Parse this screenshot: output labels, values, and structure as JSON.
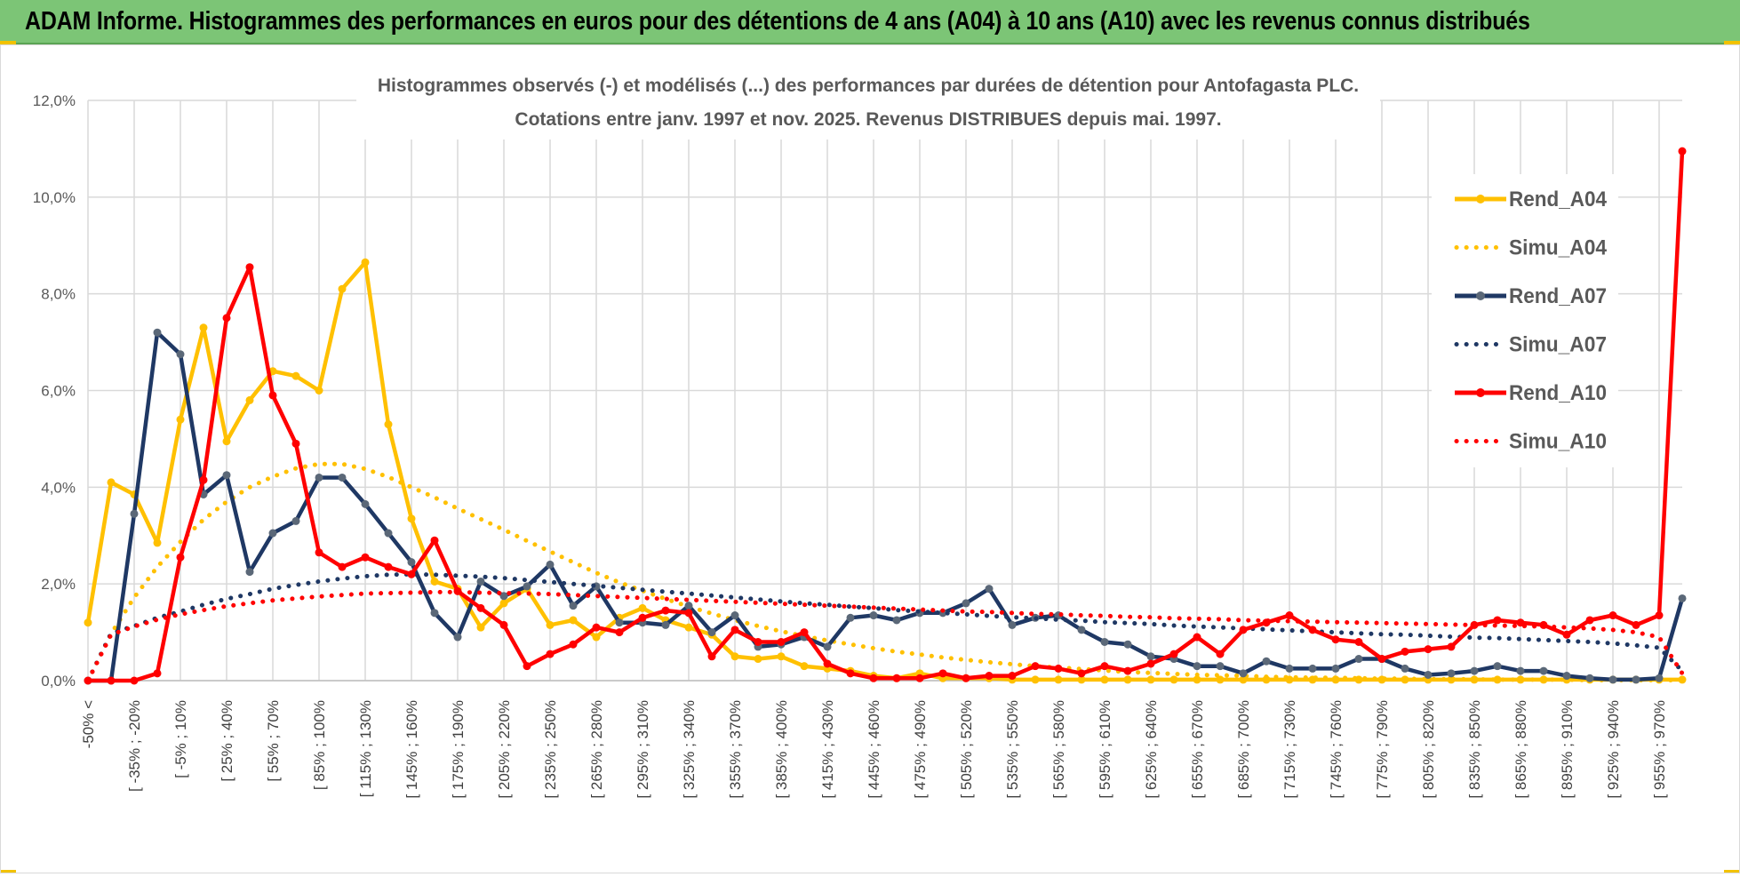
{
  "banner": {
    "title": "ADAM Informe. Histogrammes des performances en euros pour des détentions de 4 ans (A04) à 10 ans (A10) avec les revenus connus distribués"
  },
  "colors": {
    "banner_bg": "#7cc576",
    "A04": "#FFC000",
    "A07": "#1F3864",
    "A10": "#FF0000",
    "grid": "#d9d9d9"
  },
  "chart_data": {
    "type": "line",
    "title_line1": "Histogrammes observés (-) et modélisés (...)  des performances par durées de détention pour Antofagasta PLC.",
    "title_line2": "Cotations entre janv. 1997 et nov. 2025. Revenus DISTRIBUES depuis mai. 1997.",
    "ylim": [
      0,
      12
    ],
    "yticks": [
      0,
      2,
      4,
      6,
      8,
      10,
      12
    ],
    "ytick_labels": [
      "0,0%",
      "2,0%",
      "4,0%",
      "6,0%",
      "8,0%",
      "10,0%",
      "12,0%"
    ],
    "n_points": 70,
    "xtick_labels": [
      "-50% <",
      "[ -35% ; -20%",
      "[ -5% ; 10%",
      "[ 25% ; 40%",
      "[ 55% ; 70%",
      "[ 85% ; 100%",
      "[ 115% ; 130%",
      "[ 145% ; 160%",
      "[ 175% ; 190%",
      "[ 205% ; 220%",
      "[ 235% ; 250%",
      "[ 265% ; 280%",
      "[ 295% ; 310%",
      "[ 325% ; 340%",
      "[ 355% ; 370%",
      "[ 385% ; 400%",
      "[ 415% ; 430%",
      "[ 445% ; 460%",
      "[ 475% ; 490%",
      "[ 505% ; 520%",
      "[ 535% ; 550%",
      "[ 565% ; 580%",
      "[ 595% ; 610%",
      "[ 625% ; 640%",
      "[ 655% ; 670%",
      "[ 685% ; 700%",
      "[ 715% ; 730%",
      "[ 745% ; 760%",
      "[ 775% ; 790%",
      "[ 805% ; 820%",
      "[ 835% ; 850%",
      "[ 865% ; 880%",
      "[ 895% ; 910%",
      "[ 925% ; 940%",
      "[ 955% ; 970%"
    ],
    "xtick_indices": [
      0,
      2,
      4,
      6,
      8,
      10,
      12,
      14,
      16,
      18,
      20,
      22,
      24,
      26,
      28,
      30,
      32,
      34,
      36,
      38,
      40,
      42,
      44,
      46,
      48,
      50,
      52,
      54,
      56,
      58,
      60,
      62,
      64,
      66,
      68
    ],
    "series": [
      {
        "name": "Rend_A04",
        "style": "solid",
        "color": "#FFC000",
        "values": [
          1.2,
          4.1,
          3.85,
          2.85,
          5.4,
          7.3,
          4.95,
          5.8,
          6.4,
          6.3,
          6.0,
          8.1,
          8.65,
          5.3,
          3.35,
          2.05,
          1.9,
          1.1,
          1.6,
          1.9,
          1.15,
          1.25,
          0.9,
          1.3,
          1.5,
          1.25,
          1.1,
          0.95,
          0.5,
          0.45,
          0.5,
          0.3,
          0.25,
          0.2,
          0.1,
          0.05,
          0.15,
          0.05,
          0.05,
          0.05,
          0.02,
          0.02,
          0.02,
          0.02,
          0.02,
          0.02,
          0.02,
          0.02,
          0.02,
          0.02,
          0.02,
          0.02,
          0.02,
          0.02,
          0.02,
          0.02,
          0.02,
          0.02,
          0.02,
          0.02,
          0.02,
          0.02,
          0.02,
          0.02,
          0.02,
          0.02,
          0.02,
          0.02,
          0.02,
          0.02
        ]
      },
      {
        "name": "Simu_A04",
        "style": "dotted",
        "color": "#FFC000",
        "values": [
          0.0,
          0.97,
          1.72,
          2.35,
          2.87,
          3.33,
          3.7,
          4.0,
          4.22,
          4.39,
          4.48,
          4.48,
          4.38,
          4.21,
          4.0,
          3.79,
          3.56,
          3.34,
          3.12,
          2.89,
          2.67,
          2.45,
          2.23,
          2.03,
          1.86,
          1.69,
          1.53,
          1.39,
          1.25,
          1.13,
          1.02,
          0.92,
          0.83,
          0.75,
          0.67,
          0.6,
          0.54,
          0.48,
          0.43,
          0.38,
          0.34,
          0.3,
          0.27,
          0.24,
          0.21,
          0.18,
          0.16,
          0.14,
          0.12,
          0.11,
          0.1,
          0.08,
          0.07,
          0.06,
          0.06,
          0.05,
          0.04,
          0.04,
          0.03,
          0.03,
          0.03,
          0.02,
          0.02,
          0.02,
          0.02,
          0.01,
          0.01,
          0.01,
          0.01,
          0.01
        ]
      },
      {
        "name": "Rend_A07",
        "style": "solid",
        "color": "#1F3864",
        "values": [
          0.0,
          0.0,
          3.45,
          7.2,
          6.75,
          3.85,
          4.25,
          2.25,
          3.05,
          3.3,
          4.2,
          4.2,
          3.65,
          3.05,
          2.45,
          1.4,
          0.9,
          2.05,
          1.75,
          1.95,
          2.4,
          1.55,
          1.95,
          1.2,
          1.2,
          1.15,
          1.55,
          1.0,
          1.35,
          0.7,
          0.75,
          0.9,
          0.7,
          1.3,
          1.35,
          1.25,
          1.4,
          1.4,
          1.6,
          1.9,
          1.15,
          1.3,
          1.35,
          1.05,
          0.8,
          0.75,
          0.5,
          0.45,
          0.3,
          0.3,
          0.15,
          0.4,
          0.25,
          0.25,
          0.25,
          0.45,
          0.45,
          0.25,
          0.12,
          0.15,
          0.2,
          0.3,
          0.2,
          0.2,
          0.1,
          0.05,
          0.02,
          0.02,
          0.05,
          1.7
        ]
      },
      {
        "name": "Simu_A07",
        "style": "dotted",
        "color": "#1F3864",
        "values": [
          0.0,
          0.98,
          1.13,
          1.3,
          1.43,
          1.57,
          1.69,
          1.79,
          1.9,
          1.98,
          2.05,
          2.11,
          2.16,
          2.19,
          2.2,
          2.19,
          2.17,
          2.15,
          2.12,
          2.08,
          2.04,
          2.0,
          1.96,
          1.92,
          1.88,
          1.84,
          1.8,
          1.76,
          1.72,
          1.68,
          1.64,
          1.6,
          1.57,
          1.53,
          1.5,
          1.46,
          1.43,
          1.4,
          1.37,
          1.34,
          1.31,
          1.29,
          1.26,
          1.24,
          1.21,
          1.19,
          1.17,
          1.14,
          1.12,
          1.1,
          1.08,
          1.06,
          1.04,
          1.02,
          1.0,
          0.98,
          0.96,
          0.95,
          0.93,
          0.91,
          0.89,
          0.88,
          0.86,
          0.84,
          0.82,
          0.8,
          0.77,
          0.73,
          0.68,
          0.2
        ]
      },
      {
        "name": "Rend_A10",
        "style": "solid",
        "color": "#FF0000",
        "values": [
          0.0,
          0.0,
          0.0,
          0.15,
          2.55,
          4.15,
          7.5,
          8.55,
          5.9,
          4.9,
          2.65,
          2.35,
          2.55,
          2.35,
          2.2,
          2.9,
          1.85,
          1.5,
          1.15,
          0.3,
          0.55,
          0.75,
          1.1,
          1.0,
          1.3,
          1.45,
          1.4,
          0.5,
          1.05,
          0.8,
          0.8,
          1.0,
          0.35,
          0.15,
          0.05,
          0.05,
          0.05,
          0.15,
          0.05,
          0.1,
          0.1,
          0.3,
          0.25,
          0.15,
          0.3,
          0.2,
          0.35,
          0.55,
          0.9,
          0.55,
          1.05,
          1.2,
          1.35,
          1.05,
          0.85,
          0.8,
          0.45,
          0.6,
          0.65,
          0.7,
          1.15,
          1.25,
          1.2,
          1.15,
          0.95,
          1.25,
          1.35,
          1.15,
          1.35,
          10.95
        ]
      },
      {
        "name": "Simu_A10",
        "style": "dotted",
        "color": "#FF0000",
        "values": [
          0.0,
          0.95,
          1.12,
          1.26,
          1.37,
          1.46,
          1.54,
          1.6,
          1.66,
          1.7,
          1.74,
          1.77,
          1.8,
          1.81,
          1.82,
          1.83,
          1.83,
          1.82,
          1.81,
          1.8,
          1.79,
          1.77,
          1.75,
          1.73,
          1.71,
          1.69,
          1.67,
          1.65,
          1.63,
          1.61,
          1.59,
          1.57,
          1.55,
          1.53,
          1.51,
          1.49,
          1.47,
          1.45,
          1.43,
          1.42,
          1.4,
          1.38,
          1.37,
          1.35,
          1.34,
          1.32,
          1.31,
          1.29,
          1.28,
          1.27,
          1.25,
          1.24,
          1.23,
          1.22,
          1.21,
          1.2,
          1.19,
          1.18,
          1.17,
          1.16,
          1.15,
          1.14,
          1.13,
          1.12,
          1.1,
          1.08,
          1.05,
          1.0,
          0.9,
          0.15
        ]
      }
    ],
    "legend": [
      "Rend_A04",
      "Simu_A04",
      "Rend_A07",
      "Simu_A07",
      "Rend_A10",
      "Simu_A10"
    ]
  }
}
